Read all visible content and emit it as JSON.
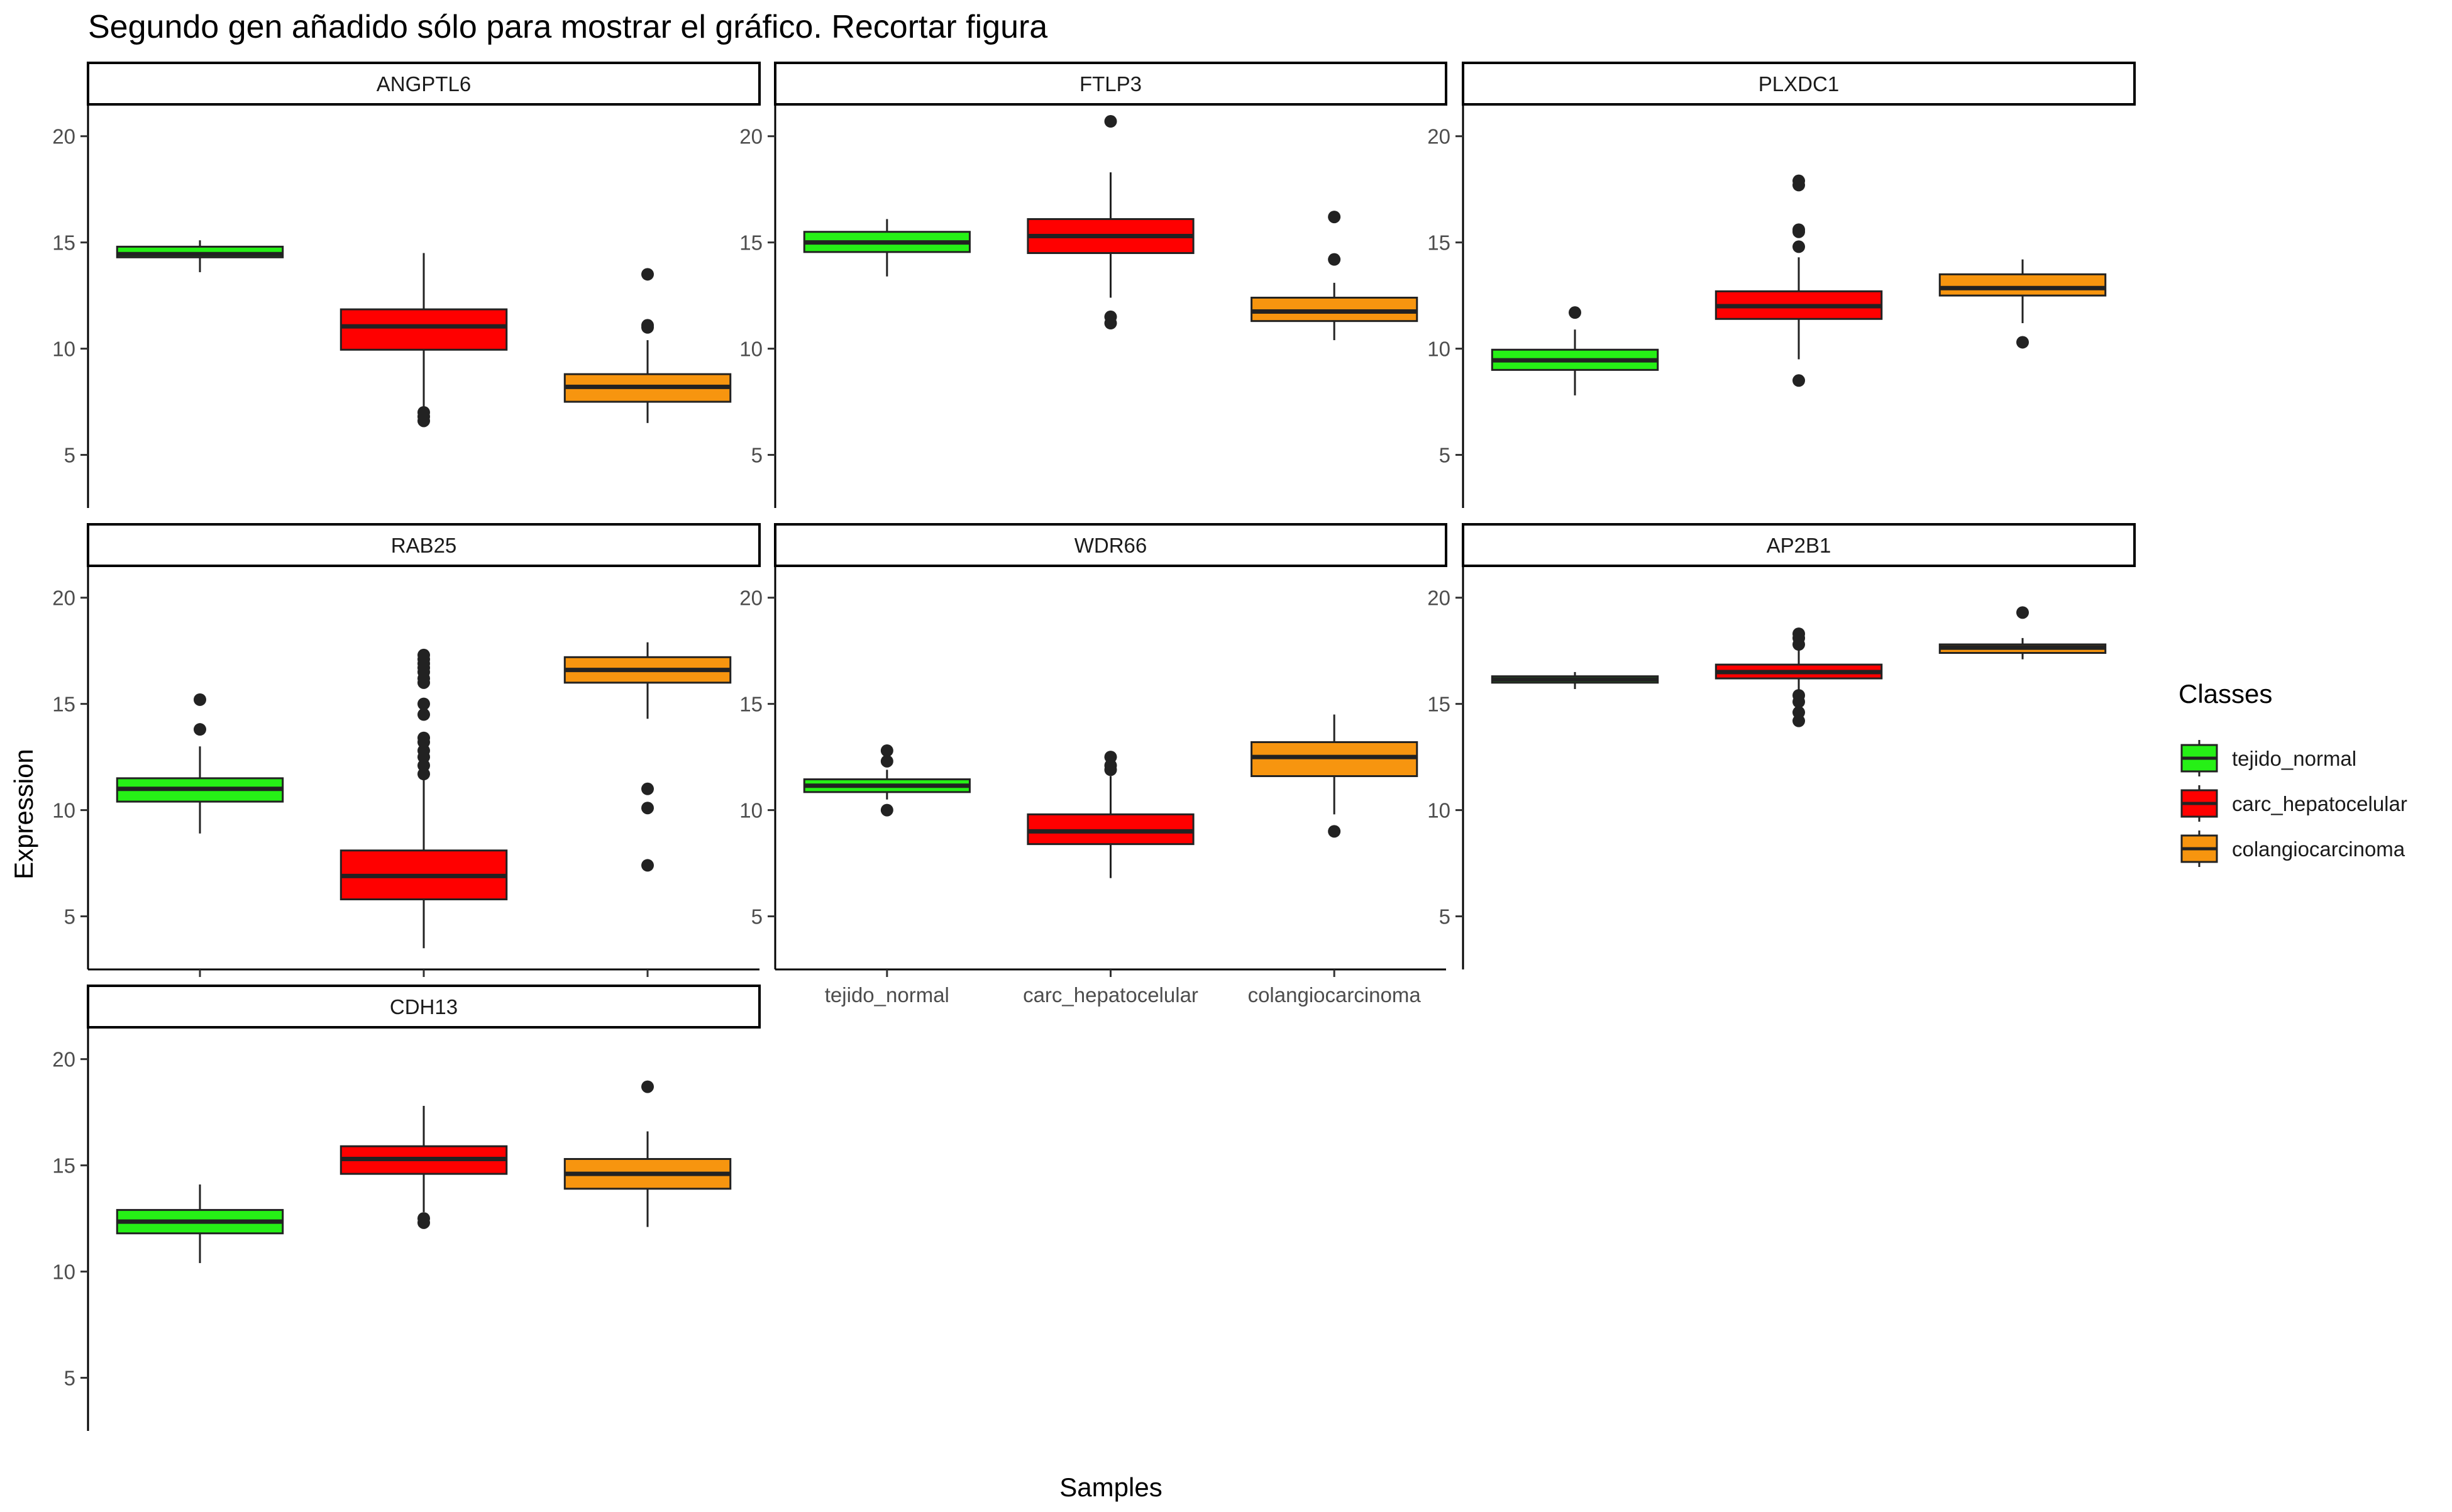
{
  "chart_data": {
    "type": "boxplot",
    "title": "Segundo gen añadido sólo para mostrar el gráfico. Recortar figura",
    "xlabel": "Samples",
    "ylabel": "Expression",
    "categories": [
      "tejido_normal",
      "carc_hepatocelular",
      "colangiocarcinoma"
    ],
    "ylim": [
      2.5,
      21.5
    ],
    "yticks": [
      5,
      10,
      15,
      20
    ],
    "grid": false,
    "facet_layout": "3 columns, free x axis labels on bottom row of each column",
    "legend": {
      "title": "Classes",
      "placement": "right",
      "entries": [
        "tejido_normal",
        "carc_hepatocelular",
        "colangiocarcinoma"
      ]
    },
    "colors": {
      "tejido_normal": "#26f016",
      "carc_hepatocelular": "#ff0000",
      "colangiocarcinoma": "#f7950f"
    },
    "panels": [
      {
        "gene": "ANGPTL6",
        "boxes": [
          {
            "category": "tejido_normal",
            "q1": 14.3,
            "median": 14.45,
            "q3": 14.8,
            "lower": 13.6,
            "upper": 15.1,
            "outliers": []
          },
          {
            "category": "carc_hepatocelular",
            "q1": 9.95,
            "median": 11.05,
            "q3": 11.85,
            "lower": 7.1,
            "upper": 14.5,
            "outliers": [
              6.6,
              6.8,
              7.0
            ]
          },
          {
            "category": "colangiocarcinoma",
            "q1": 7.5,
            "median": 8.2,
            "q3": 8.8,
            "lower": 6.5,
            "upper": 10.4,
            "outliers": [
              11.0,
              11.1,
              13.5
            ]
          }
        ]
      },
      {
        "gene": "FTLP3",
        "boxes": [
          {
            "category": "tejido_normal",
            "q1": 14.55,
            "median": 15.0,
            "q3": 15.5,
            "lower": 13.4,
            "upper": 16.1,
            "outliers": []
          },
          {
            "category": "carc_hepatocelular",
            "q1": 14.5,
            "median": 15.3,
            "q3": 16.1,
            "lower": 12.4,
            "upper": 18.3,
            "outliers": [
              11.2,
              11.5,
              20.7
            ]
          },
          {
            "category": "colangiocarcinoma",
            "q1": 11.3,
            "median": 11.75,
            "q3": 12.4,
            "lower": 10.4,
            "upper": 13.1,
            "outliers": [
              14.2,
              16.2
            ]
          }
        ]
      },
      {
        "gene": "PLXDC1",
        "boxes": [
          {
            "category": "tejido_normal",
            "q1": 9.0,
            "median": 9.45,
            "q3": 9.95,
            "lower": 7.8,
            "upper": 10.9,
            "outliers": [
              11.7
            ]
          },
          {
            "category": "carc_hepatocelular",
            "q1": 11.4,
            "median": 12.0,
            "q3": 12.7,
            "lower": 9.5,
            "upper": 14.3,
            "outliers": [
              8.5,
              14.8,
              15.5,
              15.6,
              17.7,
              17.9
            ]
          },
          {
            "category": "colangiocarcinoma",
            "q1": 12.5,
            "median": 12.85,
            "q3": 13.5,
            "lower": 11.2,
            "upper": 14.2,
            "outliers": [
              10.3
            ]
          }
        ]
      },
      {
        "gene": "RAB25",
        "boxes": [
          {
            "category": "tejido_normal",
            "q1": 10.4,
            "median": 11.0,
            "q3": 11.5,
            "lower": 8.9,
            "upper": 13.0,
            "outliers": [
              13.8,
              15.2
            ]
          },
          {
            "category": "carc_hepatocelular",
            "q1": 5.8,
            "median": 6.9,
            "q3": 8.1,
            "lower": 3.5,
            "upper": 11.5,
            "outliers": [
              11.7,
              12.1,
              12.5,
              12.8,
              13.2,
              13.4,
              14.5,
              15.0,
              16.0,
              16.2,
              16.5,
              16.7,
              16.9,
              17.1,
              17.3
            ]
          },
          {
            "category": "colangiocarcinoma",
            "q1": 16.0,
            "median": 16.6,
            "q3": 17.2,
            "lower": 14.3,
            "upper": 17.9,
            "outliers": [
              7.4,
              10.1,
              11.0
            ]
          }
        ]
      },
      {
        "gene": "WDR66",
        "boxes": [
          {
            "category": "tejido_normal",
            "q1": 10.85,
            "median": 11.15,
            "q3": 11.45,
            "lower": 10.5,
            "upper": 11.9,
            "outliers": [
              10.0,
              12.3,
              12.8
            ]
          },
          {
            "category": "carc_hepatocelular",
            "q1": 8.4,
            "median": 9.0,
            "q3": 9.8,
            "lower": 6.8,
            "upper": 11.6,
            "outliers": [
              11.9,
              12.1,
              12.5
            ]
          },
          {
            "category": "colangiocarcinoma",
            "q1": 11.6,
            "median": 12.5,
            "q3": 13.2,
            "lower": 9.8,
            "upper": 14.5,
            "outliers": [
              9.0
            ]
          }
        ]
      },
      {
        "gene": "AP2B1",
        "boxes": [
          {
            "category": "tejido_normal",
            "q1": 16.0,
            "median": 16.15,
            "q3": 16.3,
            "lower": 15.7,
            "upper": 16.5,
            "outliers": []
          },
          {
            "category": "carc_hepatocelular",
            "q1": 16.2,
            "median": 16.5,
            "q3": 16.85,
            "lower": 15.6,
            "upper": 17.6,
            "outliers": [
              14.2,
              14.6,
              15.1,
              15.4,
              17.8,
              18.1,
              18.3
            ]
          },
          {
            "category": "colangiocarcinoma",
            "q1": 17.4,
            "median": 17.65,
            "q3": 17.8,
            "lower": 17.1,
            "upper": 18.1,
            "outliers": [
              19.3
            ]
          }
        ]
      },
      {
        "gene": "CDH13",
        "boxes": [
          {
            "category": "tejido_normal",
            "q1": 11.8,
            "median": 12.35,
            "q3": 12.9,
            "lower": 10.4,
            "upper": 14.1,
            "outliers": []
          },
          {
            "category": "carc_hepatocelular",
            "q1": 14.6,
            "median": 15.3,
            "q3": 15.9,
            "lower": 12.8,
            "upper": 17.8,
            "outliers": [
              12.3,
              12.5
            ]
          },
          {
            "category": "colangiocarcinoma",
            "q1": 13.9,
            "median": 14.6,
            "q3": 15.3,
            "lower": 12.1,
            "upper": 16.6,
            "outliers": [
              18.7
            ]
          }
        ]
      }
    ]
  }
}
